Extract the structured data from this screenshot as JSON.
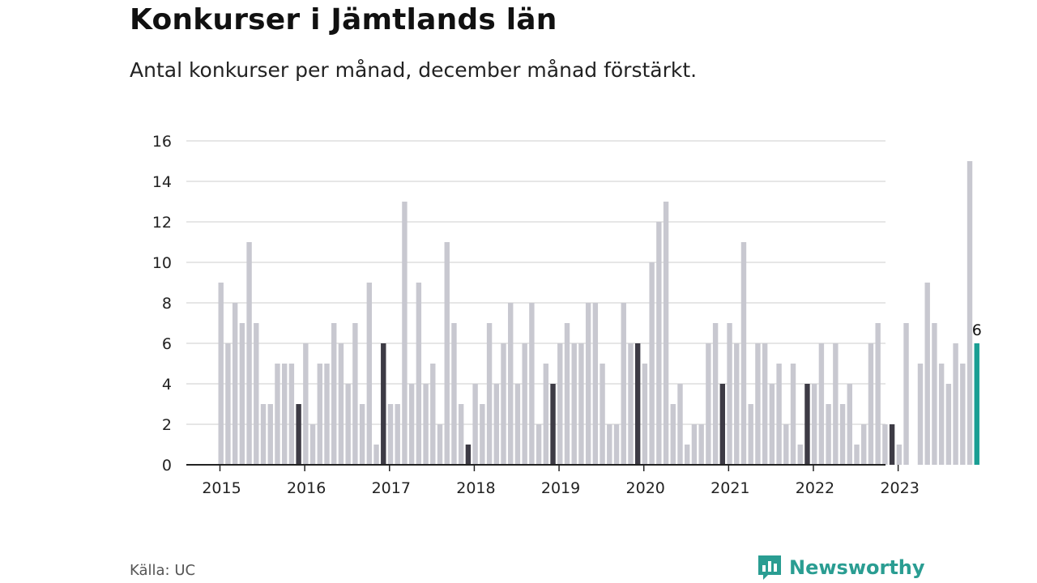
{
  "header": {
    "title": "Konkurser i Jämtlands län",
    "subtitle": "Antal konkurser per månad, december månad förstärkt."
  },
  "footer": {
    "source": "Källa: UC",
    "brand": "Newsworthy"
  },
  "colors": {
    "bar": "#c8c8d0",
    "december": "#3d3b45",
    "highlight": "#1a9e93",
    "grid": "#dedede",
    "axis": "#222222",
    "brand": "#2a9d92"
  },
  "chart_data": {
    "type": "bar",
    "ylim": [
      0,
      16
    ],
    "yticks": [
      "0",
      "2",
      "4",
      "6",
      "8",
      "10",
      "12",
      "14",
      "16"
    ],
    "xticks": [
      "2015",
      "2016",
      "2017",
      "2018",
      "2019",
      "2020",
      "2021",
      "2022",
      "2023"
    ],
    "grid": true,
    "start": "2015-01",
    "end": "2023-12",
    "values": [
      9,
      6,
      8,
      7,
      11,
      7,
      3,
      3,
      5,
      5,
      5,
      3,
      6,
      2,
      5,
      5,
      7,
      6,
      4,
      7,
      3,
      9,
      1,
      6,
      3,
      3,
      13,
      4,
      9,
      4,
      5,
      2,
      11,
      7,
      3,
      1,
      4,
      3,
      7,
      4,
      6,
      8,
      4,
      6,
      8,
      2,
      5,
      4,
      6,
      7,
      6,
      6,
      8,
      8,
      5,
      2,
      2,
      8,
      6,
      6,
      5,
      10,
      12,
      13,
      3,
      4,
      1,
      2,
      2,
      6,
      7,
      4,
      7,
      6,
      11,
      3,
      6,
      6,
      4,
      5,
      2,
      5,
      1,
      4,
      4,
      6,
      3,
      6,
      3,
      4,
      1,
      2,
      6,
      7,
      2,
      2,
      1,
      7,
      0,
      5,
      9,
      7,
      5,
      4,
      6,
      5,
      15,
      6
    ],
    "highlight_label": "6"
  }
}
